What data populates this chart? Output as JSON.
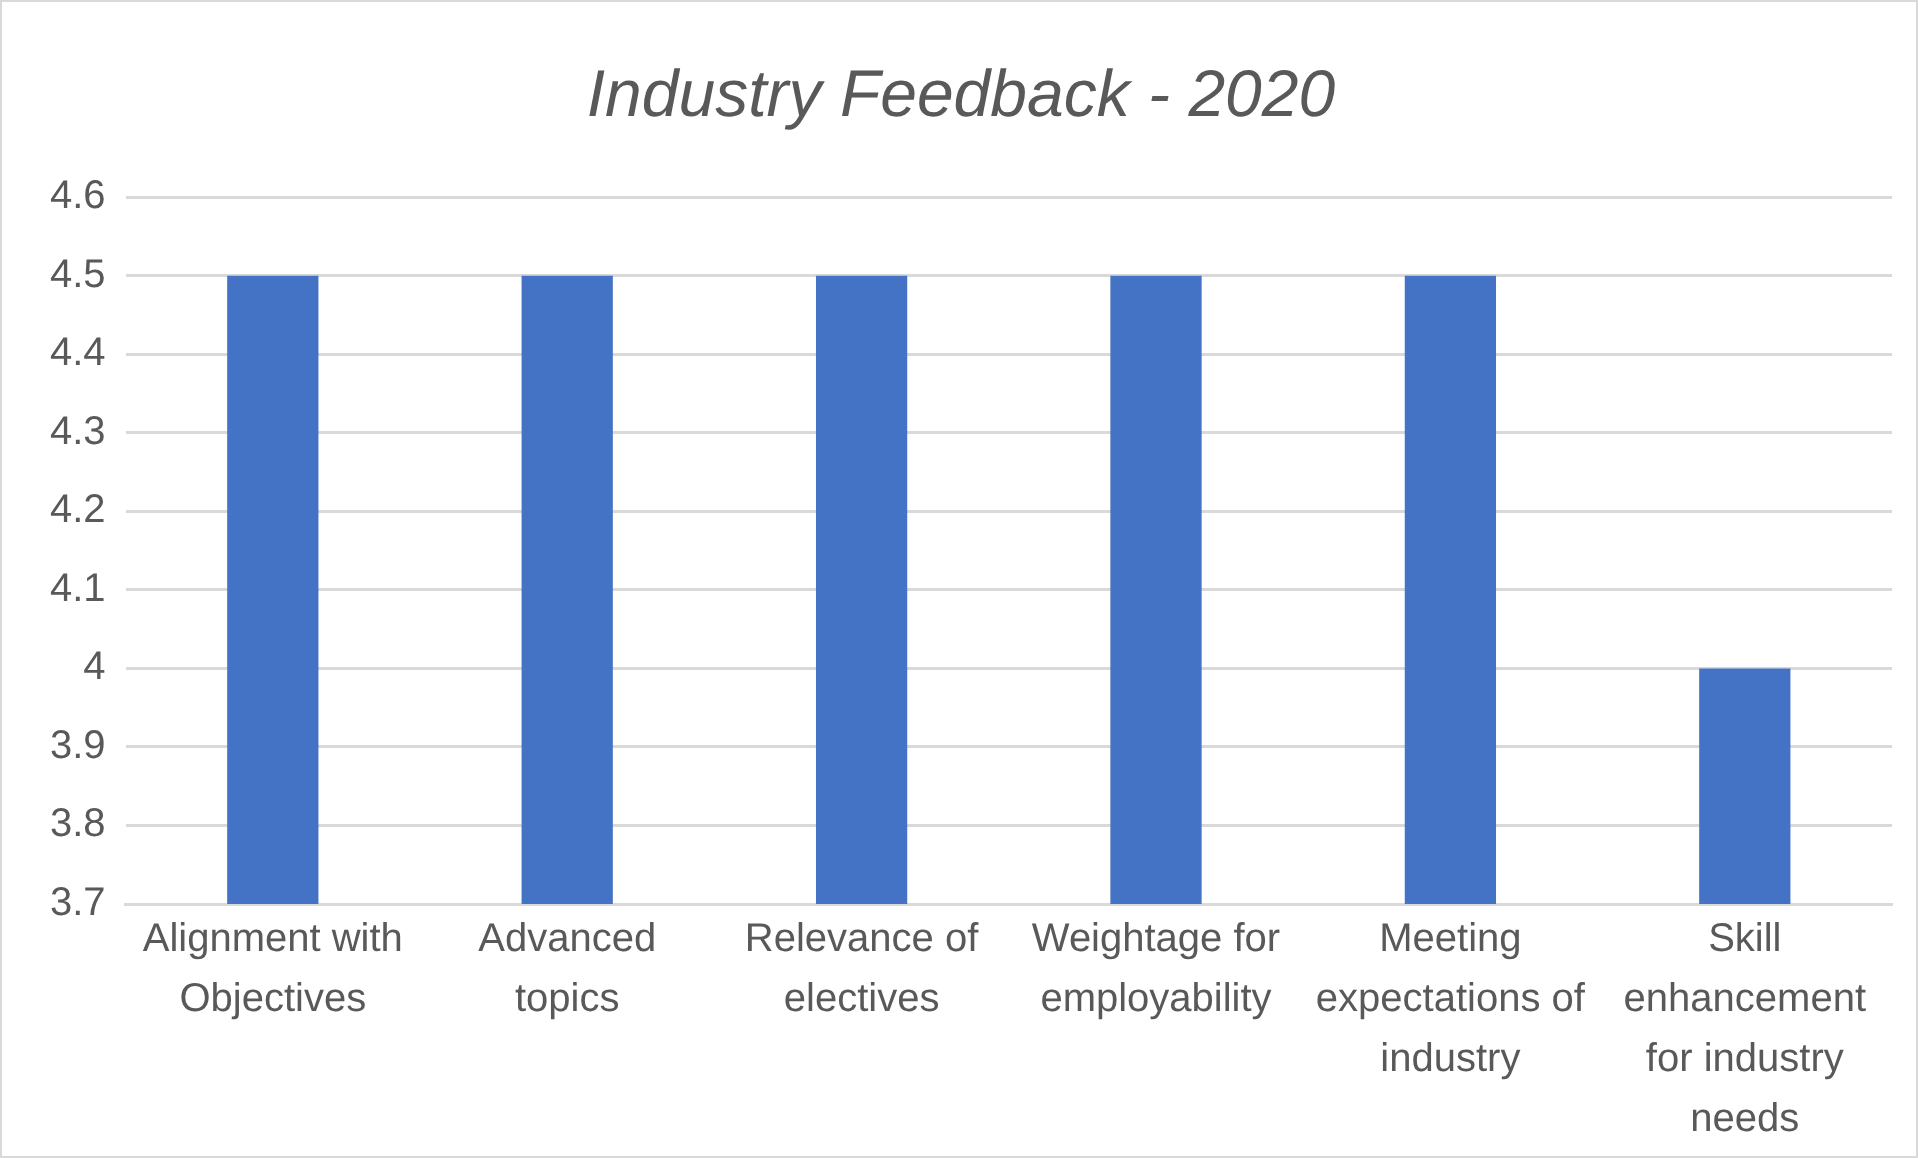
{
  "chart_data": {
    "type": "bar",
    "title": "Industry Feedback - 2020",
    "categories": [
      "Alignment with Objectives",
      "Advanced topics",
      "Relevance of electives",
      "Weightage for employability",
      "Meeting expectations of industry",
      "Skill enhancement for industry needs"
    ],
    "values": [
      4.5,
      4.5,
      4.5,
      4.5,
      4.5,
      4.0
    ],
    "color": "#4472c4",
    "ylim": [
      3.7,
      4.6
    ],
    "yticks": [
      3.7,
      3.8,
      3.9,
      4,
      4.1,
      4.2,
      4.3,
      4.4,
      4.5,
      4.6
    ],
    "grid": "y",
    "legend": false
  }
}
